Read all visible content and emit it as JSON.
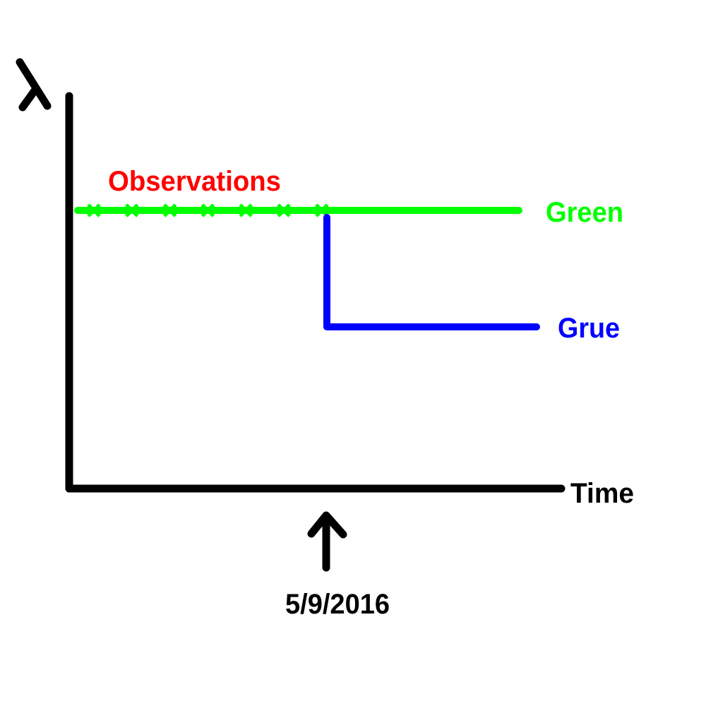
{
  "diagram": {
    "y_axis_label": "λ",
    "x_axis_label": "Time",
    "observations_label": "Observations",
    "green_label": "Green",
    "grue_label": "Grue",
    "date_label": "5/9/2016",
    "observation_count": 7,
    "colors": {
      "axes": "#000000",
      "green": "#00ff00",
      "grue": "#0000ff",
      "observations": "#ff0000"
    },
    "icons": {
      "observation_mark": "x-mark-icon",
      "date_pointer": "arrow-up-icon"
    }
  }
}
